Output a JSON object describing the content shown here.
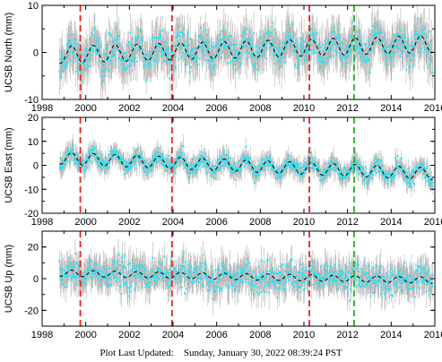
{
  "footer": {
    "label": "Plot Last Updated:",
    "timestamp": "Sunday, January 30, 2022 08:39:24 PST"
  },
  "colors": {
    "data": "#22e5f5",
    "errorbar": "#b4b4b4",
    "model": "#000000",
    "red_line": "#e8231f",
    "green_line": "#22b222"
  },
  "chart_data": [
    {
      "type": "scatter",
      "ylabel": "UCSB North (mm)",
      "xlim": [
        1998,
        2016
      ],
      "ylim": [
        -10,
        10
      ],
      "xticks": [
        "1998",
        "2000",
        "2002",
        "2004",
        "2006",
        "2008",
        "2010",
        "2012",
        "2014",
        "2016"
      ],
      "yticks": [
        "-10",
        "0",
        "10"
      ],
      "ytick_values": [
        -10,
        0,
        10
      ],
      "data_span": [
        1998.8,
        2015.9
      ],
      "seasonal_model": {
        "offset_start": -0.5,
        "offset_end": 1.8,
        "amplitude": 1.8,
        "period_years": 1
      },
      "scatter_sd": 1.8,
      "error_bar": 3.5,
      "vertical_lines": [
        {
          "x": 1999.75,
          "style": "red-dashed"
        },
        {
          "x": 2003.95,
          "style": "red-dashed"
        },
        {
          "x": 2010.25,
          "style": "red-dashed"
        },
        {
          "x": 2012.3,
          "style": "green-dashed"
        }
      ]
    },
    {
      "type": "scatter",
      "ylabel": "UCSB East (mm)",
      "xlim": [
        1998,
        2016
      ],
      "ylim": [
        -20,
        20
      ],
      "xticks": [
        "1998",
        "2000",
        "2002",
        "2004",
        "2006",
        "2008",
        "2010",
        "2012",
        "2014",
        "2016"
      ],
      "yticks": [
        "-20",
        "-10",
        "0",
        "10",
        "20"
      ],
      "ytick_values": [
        -20,
        -10,
        0,
        10,
        20
      ],
      "data_span": [
        1998.8,
        2015.9
      ],
      "seasonal_model": {
        "offset_start": 3.0,
        "offset_end": -3.5,
        "amplitude": 2.5,
        "period_years": 1
      },
      "scatter_sd": 1.6,
      "error_bar": 3.5,
      "vertical_lines": [
        {
          "x": 1999.75,
          "style": "red-dashed"
        },
        {
          "x": 2003.95,
          "style": "red-dashed"
        },
        {
          "x": 2010.25,
          "style": "red-dashed"
        },
        {
          "x": 2012.3,
          "style": "green-dashed"
        }
      ]
    },
    {
      "type": "scatter",
      "ylabel": "UCSB Up (mm)",
      "xlim": [
        1998,
        2016
      ],
      "ylim": [
        -30,
        30
      ],
      "xticks": [
        "1998",
        "2000",
        "2002",
        "2004",
        "2006",
        "2008",
        "2010",
        "2012",
        "2014",
        "2016"
      ],
      "yticks": [
        "-20",
        "0",
        "20"
      ],
      "ytick_values": [
        -20,
        0,
        20
      ],
      "data_span": [
        1998.8,
        2015.9
      ],
      "seasonal_model": {
        "offset_start": 3.5,
        "offset_end": -1.0,
        "amplitude": 2.0,
        "period_years": 1
      },
      "scatter_sd": 4.5,
      "error_bar": 8,
      "vertical_lines": [
        {
          "x": 1999.75,
          "style": "red-dashed"
        },
        {
          "x": 2003.95,
          "style": "red-dashed"
        },
        {
          "x": 2010.25,
          "style": "red-dashed"
        },
        {
          "x": 2012.3,
          "style": "green-dashed"
        }
      ]
    }
  ]
}
